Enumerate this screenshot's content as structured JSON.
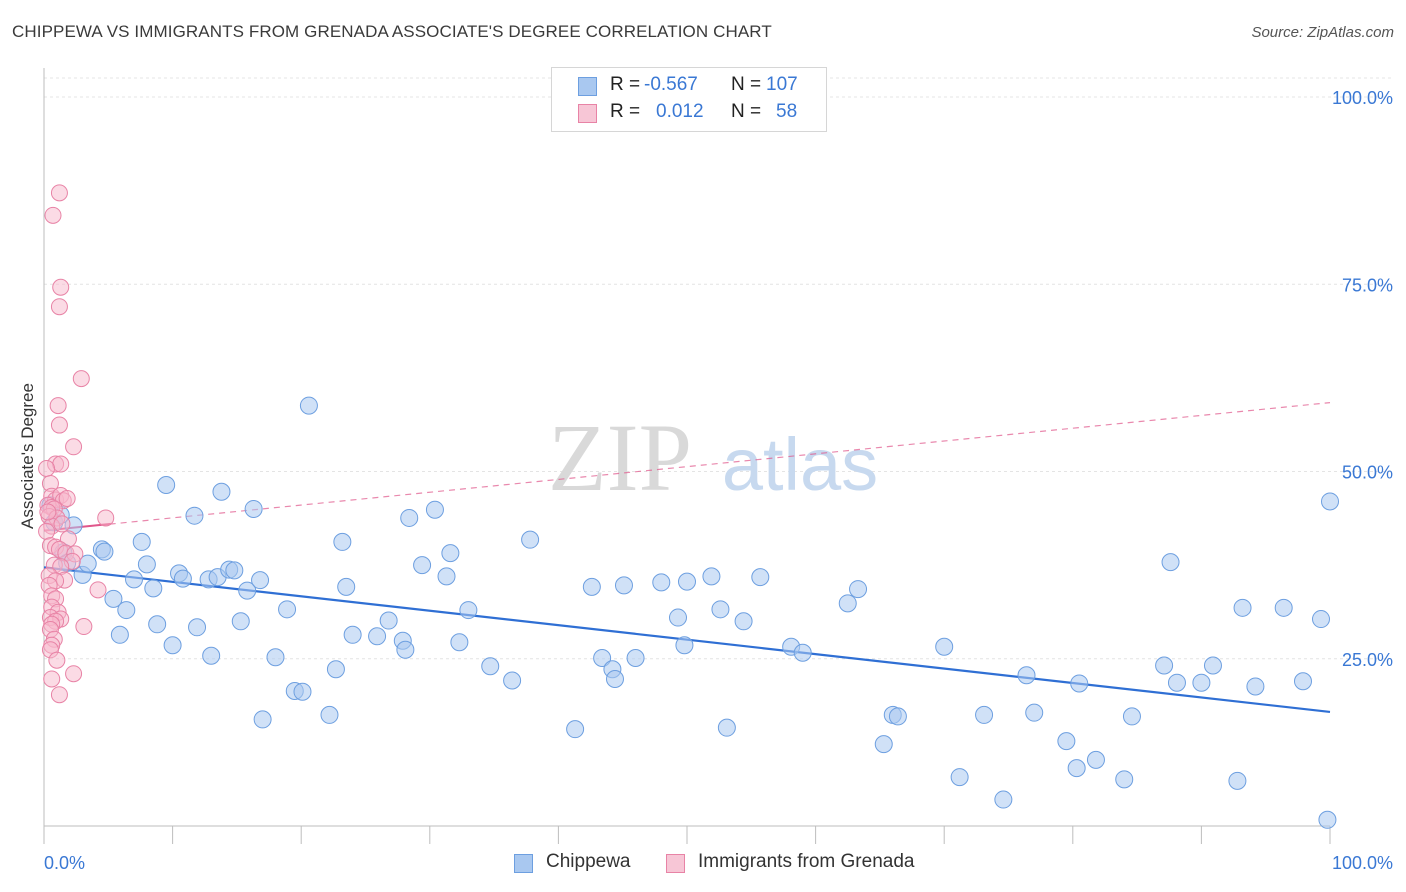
{
  "title": "CHIPPEWA VS IMMIGRANTS FROM GRENADA ASSOCIATE'S DEGREE CORRELATION CHART",
  "source": "Source: ZipAtlas.com",
  "watermark": {
    "zip": "ZIP",
    "atlas": "atlas"
  },
  "colors": {
    "chippewa_fill": "#a9c8f0",
    "chippewa_stroke": "#6d9fe0",
    "chippewa_line": "#2f6fd4",
    "grenada_fill": "#f7b8cc",
    "grenada_stroke": "#e883a6",
    "grenada_line": "#e0558a",
    "axis_text": "#3a78d4",
    "grid": "#e4e4e4"
  },
  "legend": {
    "rows": [
      {
        "r_label": "R =",
        "r_value": "-0.567",
        "n_label": "N =",
        "n_value": "107"
      },
      {
        "r_label": "R =",
        "r_value": "0.012",
        "n_label": "N =",
        "n_value": "58"
      }
    ]
  },
  "bottom_legend": {
    "series1": "Chippewa",
    "series2": "Immigrants from Grenada"
  },
  "chart_data": {
    "type": "scatter",
    "title": "CHIPPEWA VS IMMIGRANTS FROM GRENADA ASSOCIATE'S DEGREE CORRELATION CHART",
    "xlabel": "",
    "ylabel": "Associate's Degree",
    "xlim": [
      0,
      100
    ],
    "ylim": [
      0,
      100
    ],
    "x_tick_labels": [
      "0.0%",
      "100.0%"
    ],
    "y_tick_labels": [
      "25.0%",
      "50.0%",
      "75.0%",
      "100.0%"
    ],
    "y_ticks": [
      25,
      50,
      75,
      100
    ],
    "grid": true,
    "legend_position": "top-center",
    "series": [
      {
        "name": "Chippewa",
        "R": -0.567,
        "N": 107,
        "trend": {
          "x": [
            0,
            100
          ],
          "y": [
            37.2,
            17.9
          ],
          "style": "solid"
        },
        "points": [
          [
            0.5,
            45.5
          ],
          [
            0.8,
            43.2
          ],
          [
            1.3,
            44.2
          ],
          [
            1.5,
            39.2
          ],
          [
            1.8,
            37.8
          ],
          [
            2.3,
            42.8
          ],
          [
            3.0,
            36.2
          ],
          [
            3.4,
            37.7
          ],
          [
            4.5,
            39.6
          ],
          [
            4.7,
            39.3
          ],
          [
            5.4,
            33.0
          ],
          [
            5.9,
            28.2
          ],
          [
            6.4,
            31.5
          ],
          [
            7.0,
            35.6
          ],
          [
            7.6,
            40.6
          ],
          [
            8.0,
            37.6
          ],
          [
            8.5,
            34.4
          ],
          [
            8.8,
            29.6
          ],
          [
            9.5,
            48.2
          ],
          [
            10.0,
            26.8
          ],
          [
            10.5,
            36.4
          ],
          [
            10.8,
            35.7
          ],
          [
            11.7,
            44.1
          ],
          [
            11.9,
            29.2
          ],
          [
            12.8,
            35.6
          ],
          [
            13.0,
            25.4
          ],
          [
            13.5,
            35.9
          ],
          [
            13.8,
            47.3
          ],
          [
            14.4,
            36.9
          ],
          [
            14.8,
            36.8
          ],
          [
            15.3,
            30.0
          ],
          [
            15.8,
            34.1
          ],
          [
            16.3,
            45.0
          ],
          [
            16.8,
            35.5
          ],
          [
            17.0,
            16.9
          ],
          [
            18.0,
            25.2
          ],
          [
            18.9,
            31.6
          ],
          [
            19.5,
            20.7
          ],
          [
            20.1,
            20.6
          ],
          [
            20.6,
            58.8
          ],
          [
            22.2,
            17.5
          ],
          [
            22.7,
            23.6
          ],
          [
            23.2,
            40.6
          ],
          [
            23.5,
            34.6
          ],
          [
            24.0,
            28.2
          ],
          [
            25.9,
            28.0
          ],
          [
            26.8,
            30.1
          ],
          [
            27.9,
            27.4
          ],
          [
            28.1,
            26.2
          ],
          [
            28.4,
            43.8
          ],
          [
            29.4,
            37.5
          ],
          [
            30.4,
            44.9
          ],
          [
            31.3,
            36.0
          ],
          [
            31.6,
            39.1
          ],
          [
            32.3,
            27.2
          ],
          [
            33.0,
            31.5
          ],
          [
            34.7,
            24.0
          ],
          [
            36.4,
            22.1
          ],
          [
            37.8,
            40.9
          ],
          [
            41.3,
            15.6
          ],
          [
            42.6,
            34.6
          ],
          [
            43.4,
            25.1
          ],
          [
            44.2,
            23.6
          ],
          [
            44.4,
            22.3
          ],
          [
            45.1,
            34.8
          ],
          [
            46.0,
            25.1
          ],
          [
            48.0,
            35.2
          ],
          [
            49.3,
            30.5
          ],
          [
            49.8,
            26.8
          ],
          [
            50.0,
            35.3
          ],
          [
            51.9,
            36.0
          ],
          [
            52.6,
            31.6
          ],
          [
            53.1,
            15.8
          ],
          [
            54.4,
            30.0
          ],
          [
            55.7,
            35.9
          ],
          [
            58.1,
            26.6
          ],
          [
            59.0,
            25.8
          ],
          [
            62.5,
            32.4
          ],
          [
            63.3,
            34.3
          ],
          [
            65.3,
            13.6
          ],
          [
            66.0,
            17.5
          ],
          [
            66.4,
            17.3
          ],
          [
            70.0,
            26.6
          ],
          [
            71.2,
            9.2
          ],
          [
            73.1,
            17.5
          ],
          [
            74.6,
            6.2
          ],
          [
            76.4,
            22.8
          ],
          [
            77.0,
            17.8
          ],
          [
            79.5,
            14.0
          ],
          [
            80.5,
            21.7
          ],
          [
            80.3,
            10.4
          ],
          [
            81.8,
            11.5
          ],
          [
            84.0,
            8.9
          ],
          [
            84.6,
            17.3
          ],
          [
            87.1,
            24.1
          ],
          [
            87.6,
            37.9
          ],
          [
            88.1,
            21.8
          ],
          [
            90.0,
            21.8
          ],
          [
            90.9,
            24.1
          ],
          [
            92.8,
            8.7
          ],
          [
            93.2,
            31.8
          ],
          [
            94.2,
            21.3
          ],
          [
            96.4,
            31.8
          ],
          [
            97.9,
            22.0
          ],
          [
            99.3,
            30.3
          ],
          [
            100.0,
            46.0
          ],
          [
            99.8,
            3.5
          ]
        ]
      },
      {
        "name": "Immigrants from Grenada",
        "R": 0.012,
        "N": 58,
        "trend": {
          "x": [
            0,
            5.2
          ],
          "y": [
            42.1,
            43.0
          ],
          "style": "solid"
        },
        "trend_extended": {
          "x": [
            0,
            100
          ],
          "y": [
            42.1,
            59.2
          ],
          "style": "dashed"
        },
        "points": [
          [
            1.2,
            87.2
          ],
          [
            0.7,
            84.2
          ],
          [
            1.3,
            74.6
          ],
          [
            1.2,
            72.0
          ],
          [
            2.9,
            62.4
          ],
          [
            1.1,
            58.8
          ],
          [
            1.2,
            56.2
          ],
          [
            2.3,
            53.3
          ],
          [
            0.9,
            51.0
          ],
          [
            1.3,
            51.0
          ],
          [
            0.2,
            50.4
          ],
          [
            0.5,
            48.4
          ],
          [
            0.6,
            46.7
          ],
          [
            0.9,
            46.2
          ],
          [
            1.3,
            46.8
          ],
          [
            1.5,
            46.1
          ],
          [
            1.8,
            46.4
          ],
          [
            0.3,
            45.5
          ],
          [
            0.6,
            45.2
          ],
          [
            0.8,
            45.0
          ],
          [
            0.4,
            44.0
          ],
          [
            1.0,
            43.8
          ],
          [
            4.8,
            43.8
          ],
          [
            0.6,
            42.7
          ],
          [
            0.2,
            42.0
          ],
          [
            1.9,
            41.0
          ],
          [
            0.5,
            40.1
          ],
          [
            0.9,
            39.9
          ],
          [
            1.2,
            39.6
          ],
          [
            1.7,
            39.1
          ],
          [
            2.4,
            39.0
          ],
          [
            2.2,
            38.0
          ],
          [
            0.8,
            37.5
          ],
          [
            1.3,
            37.3
          ],
          [
            0.4,
            36.1
          ],
          [
            1.6,
            35.5
          ],
          [
            0.9,
            35.4
          ],
          [
            0.4,
            34.8
          ],
          [
            4.2,
            34.2
          ],
          [
            0.6,
            33.4
          ],
          [
            0.9,
            33.0
          ],
          [
            0.6,
            31.9
          ],
          [
            1.1,
            31.2
          ],
          [
            0.5,
            30.5
          ],
          [
            1.3,
            30.3
          ],
          [
            0.9,
            30.0
          ],
          [
            0.6,
            29.6
          ],
          [
            3.1,
            29.3
          ],
          [
            0.5,
            28.9
          ],
          [
            0.8,
            27.6
          ],
          [
            0.6,
            26.8
          ],
          [
            0.5,
            26.2
          ],
          [
            1.0,
            24.8
          ],
          [
            2.3,
            23.0
          ],
          [
            0.6,
            22.3
          ],
          [
            1.2,
            20.2
          ],
          [
            0.3,
            44.6
          ],
          [
            1.4,
            43.0
          ]
        ]
      }
    ]
  }
}
